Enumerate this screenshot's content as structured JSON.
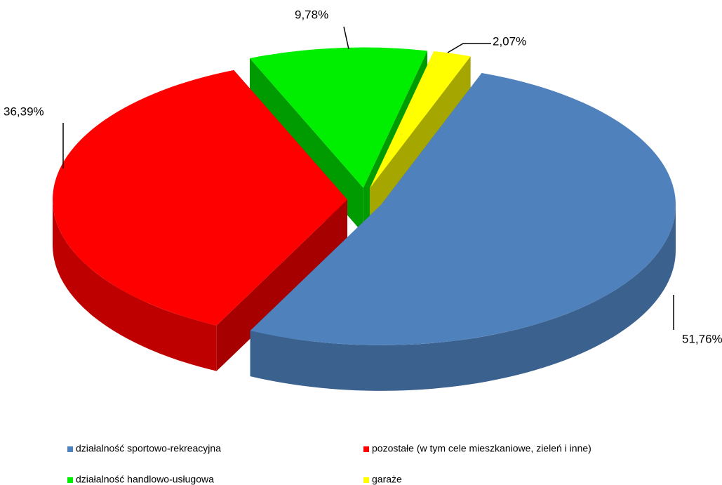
{
  "chart_data": {
    "type": "pie",
    "categories": [
      "działalność sportowo-rekreacyjna",
      "pozostałe (w tym cele mieszkaniowe, zieleń i inne)",
      "działalność handlowo-usługowa",
      "garaże"
    ],
    "values": [
      51.76,
      36.39,
      9.78,
      2.07
    ],
    "value_labels": [
      "51,76%",
      "36,39%",
      "9,78%",
      "2,07%"
    ],
    "colors": [
      "#4f81bd",
      "#ff0000",
      "#00ee00",
      "#ffff00"
    ],
    "legend": "bottom"
  }
}
